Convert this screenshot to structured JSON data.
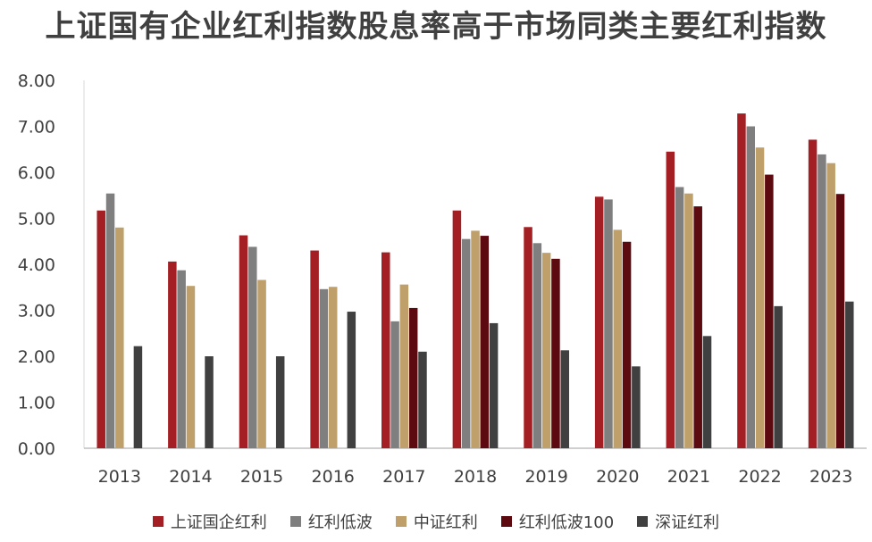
{
  "chart_data": {
    "type": "bar",
    "title": "上证国有企业红利指数股息率高于市场同类主要红利指数",
    "xlabel": "",
    "ylabel": "",
    "ylim": [
      0,
      8
    ],
    "yticks": [
      "0.00",
      "1.00",
      "2.00",
      "3.00",
      "4.00",
      "5.00",
      "6.00",
      "7.00",
      "8.00"
    ],
    "grid": false,
    "legend_position": "bottom",
    "categories": [
      "2013",
      "2014",
      "2015",
      "2016",
      "2017",
      "2018",
      "2019",
      "2020",
      "2021",
      "2022",
      "2023"
    ],
    "series": [
      {
        "name": "上证国企红利",
        "color": "#a31f24",
        "values": [
          5.17,
          4.06,
          4.63,
          4.3,
          4.26,
          5.17,
          4.81,
          5.47,
          6.45,
          7.28,
          6.71
        ]
      },
      {
        "name": "红利低波",
        "color": "#7f7f7f",
        "values": [
          5.54,
          3.87,
          4.38,
          3.46,
          2.76,
          4.55,
          4.46,
          5.41,
          5.68,
          7.0,
          6.39
        ]
      },
      {
        "name": "中证红利",
        "color": "#bfa06a",
        "values": [
          4.8,
          3.53,
          3.66,
          3.51,
          3.56,
          4.73,
          4.25,
          4.75,
          5.54,
          6.54,
          6.2
        ]
      },
      {
        "name": "红利低波100",
        "color": "#5c0a10",
        "values": [
          null,
          null,
          null,
          null,
          3.05,
          4.62,
          4.12,
          4.49,
          5.26,
          5.95,
          5.53
        ]
      },
      {
        "name": "深证红利",
        "color": "#404040",
        "values": [
          2.22,
          2.0,
          2.0,
          2.97,
          2.1,
          2.72,
          2.13,
          1.78,
          2.44,
          3.09,
          3.19
        ]
      }
    ]
  }
}
